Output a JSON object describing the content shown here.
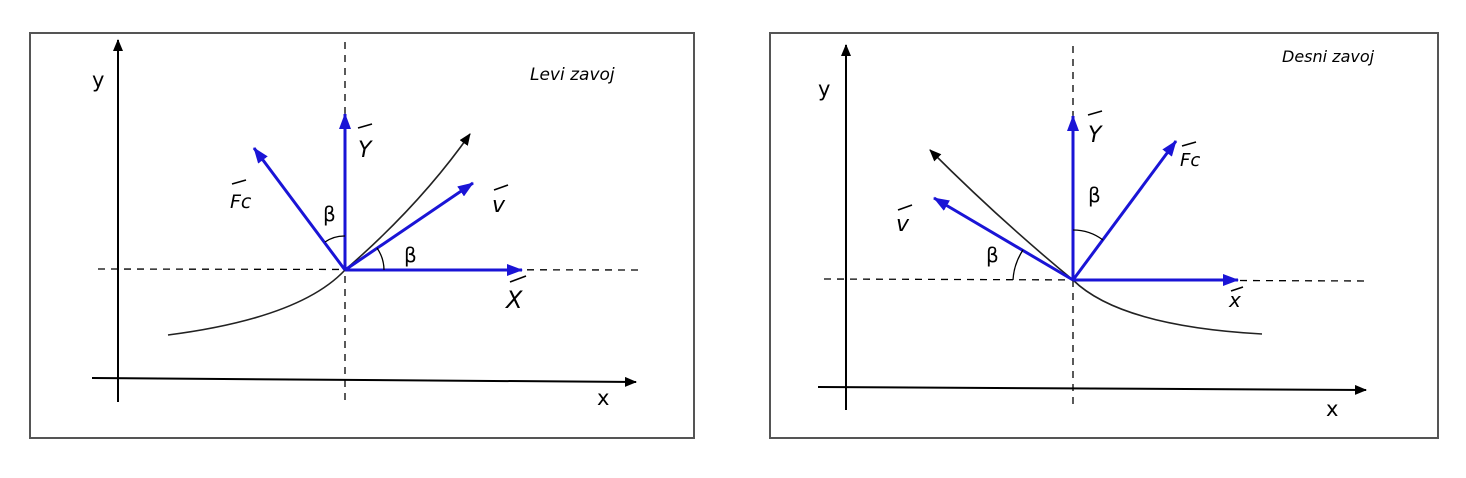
{
  "diagrams": [
    {
      "title": "Levi zavoj",
      "axis_x": "x",
      "axis_y": "y",
      "vec_x": "X",
      "vec_y": "Y",
      "vec_v": "v",
      "vec_fc": "Fc",
      "angle_upper": "β",
      "angle_lower": "β"
    },
    {
      "title": "Desni zavoj",
      "axis_x": "x",
      "axis_y": "y",
      "vec_x": "x",
      "vec_y": "Y",
      "vec_v": "v",
      "vec_fc": "Fc",
      "angle_upper": "β",
      "angle_lower": "β"
    }
  ],
  "colors": {
    "vector": "#1a14d6",
    "line": "#000000",
    "frame": "#555555"
  }
}
